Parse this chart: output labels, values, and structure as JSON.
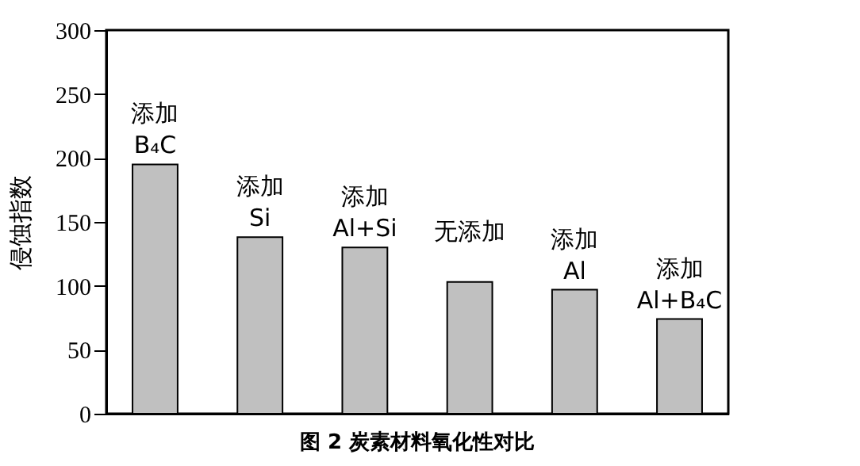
{
  "chart_data": {
    "type": "bar",
    "title": "图 2 炭素材料氧化性对比",
    "ylabel": "侵蚀指数",
    "categories": [
      "添加\nB₄C",
      "添加\nSi",
      "添加\nAl+Si",
      "无添加",
      "添加\nAl",
      "添加\nAl+B₄C"
    ],
    "values": [
      195,
      138,
      130,
      103,
      97,
      74
    ],
    "color": "#c0c0c0",
    "ylim": [
      0,
      300
    ],
    "yticks": [
      0,
      50,
      100,
      150,
      200,
      250,
      300
    ],
    "grid": false,
    "tick_labels": "y"
  }
}
